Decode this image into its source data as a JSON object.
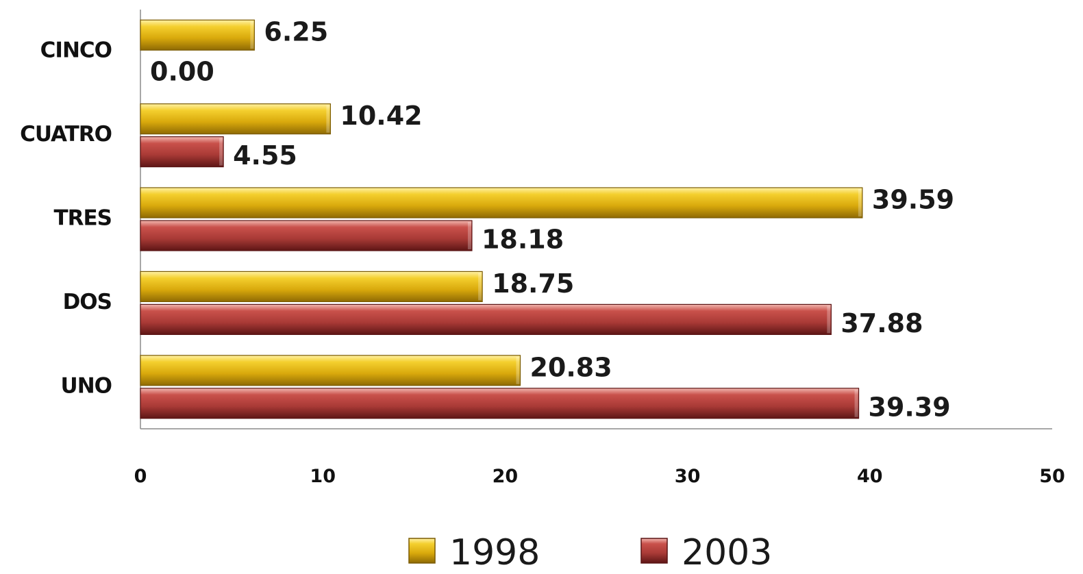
{
  "chart_data": {
    "type": "bar",
    "orientation": "horizontal",
    "categories": [
      "UNO",
      "DOS",
      "TRES",
      "CUATRO",
      "CINCO"
    ],
    "series": [
      {
        "name": "1998",
        "values": [
          20.83,
          18.75,
          39.59,
          10.42,
          6.25
        ],
        "color": "#E8B810"
      },
      {
        "name": "2003",
        "values": [
          39.39,
          37.88,
          18.18,
          4.55,
          0.0
        ],
        "color": "#B03A3A"
      }
    ],
    "data_labels": {
      "1998": [
        "20.83",
        "18.75",
        "39.59",
        "10.42",
        "6.25"
      ],
      "2003": [
        "39.39",
        "37.88",
        "18.18",
        "4.55",
        "0.00"
      ]
    },
    "x_ticks": [
      "0",
      "10",
      "20",
      "30",
      "40",
      "50"
    ],
    "xlim": [
      0,
      50
    ],
    "grid": false,
    "legend_placement": "bottom"
  }
}
